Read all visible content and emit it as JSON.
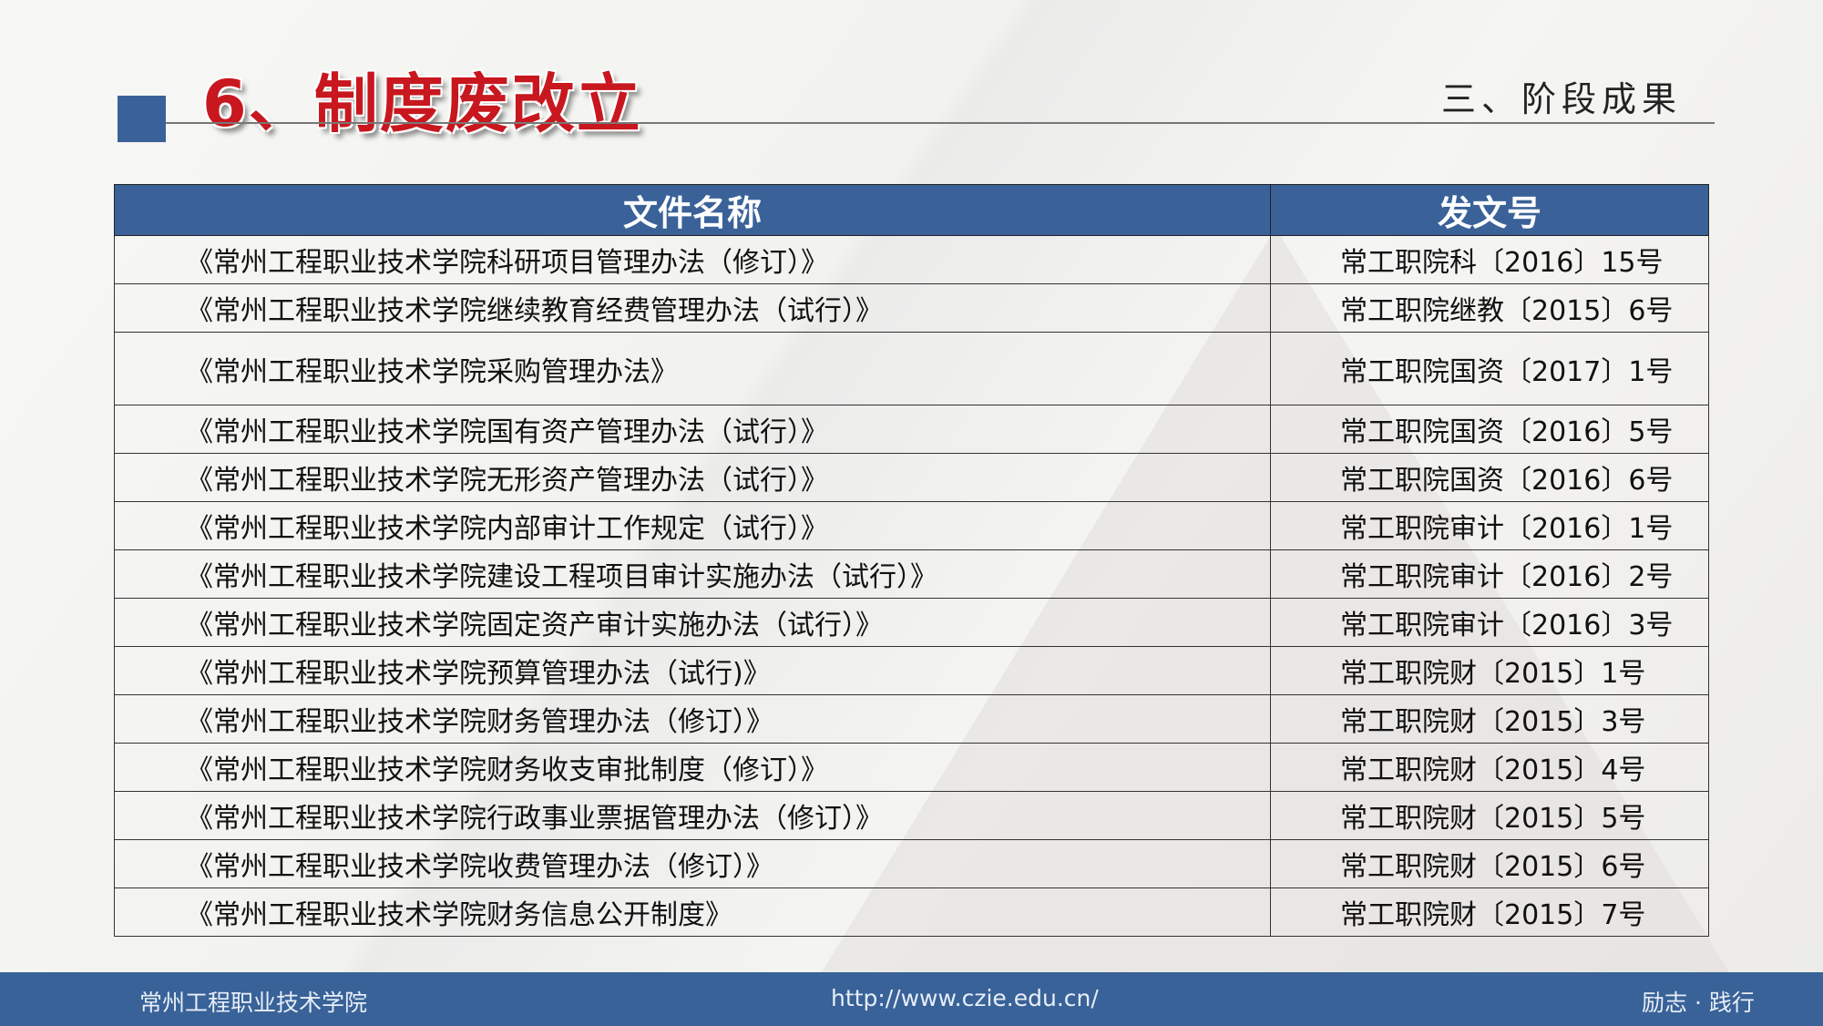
{
  "header": {
    "title": "6、制度废改立",
    "section": "三、阶段成果"
  },
  "table": {
    "columns": [
      "文件名称",
      "发文号"
    ],
    "rows": [
      [
        "《常州工程职业技术学院科研项目管理办法（修订）》",
        "常工职院科〔2016〕15号"
      ],
      [
        "《常州工程职业技术学院继续教育经费管理办法（试行）》",
        "常工职院继教〔2015〕6号"
      ],
      [
        "《常州工程职业技术学院采购管理办法》",
        "常工职院国资〔2017〕1号"
      ],
      [
        "《常州工程职业技术学院国有资产管理办法（试行）》",
        "常工职院国资〔2016〕5号"
      ],
      [
        "《常州工程职业技术学院无形资产管理办法（试行）》",
        "常工职院国资〔2016〕6号"
      ],
      [
        "《常州工程职业技术学院内部审计工作规定（试行）》",
        "常工职院审计〔2016〕1号"
      ],
      [
        "《常州工程职业技术学院建设工程项目审计实施办法（试行）》",
        "常工职院审计〔2016〕2号"
      ],
      [
        "《常州工程职业技术学院固定资产审计实施办法（试行）》",
        "常工职院审计〔2016〕3号"
      ],
      [
        "《常州工程职业技术学院预算管理办法（试行)》",
        "常工职院财〔2015〕1号"
      ],
      [
        "《常州工程职业技术学院财务管理办法（修订）》",
        "常工职院财〔2015〕3号"
      ],
      [
        "《常州工程职业技术学院财务收支审批制度（修订）》",
        "常工职院财〔2015〕4号"
      ],
      [
        "《常州工程职业技术学院行政事业票据管理办法（修订）》",
        "常工职院财〔2015〕5号"
      ],
      [
        "《常州工程职业技术学院收费管理办法（修订）》",
        "常工职院财〔2015〕6号"
      ],
      [
        "《常州工程职业技术学院财务信息公开制度》",
        "常工职院财〔2015〕7号"
      ]
    ]
  },
  "footer": {
    "school": "常州工程职业技术学院",
    "url": "http://www.czie.edu.cn/",
    "motto": "励志 · 践行"
  },
  "colors": {
    "accent": "#3a6299",
    "title": "#c8171e"
  }
}
